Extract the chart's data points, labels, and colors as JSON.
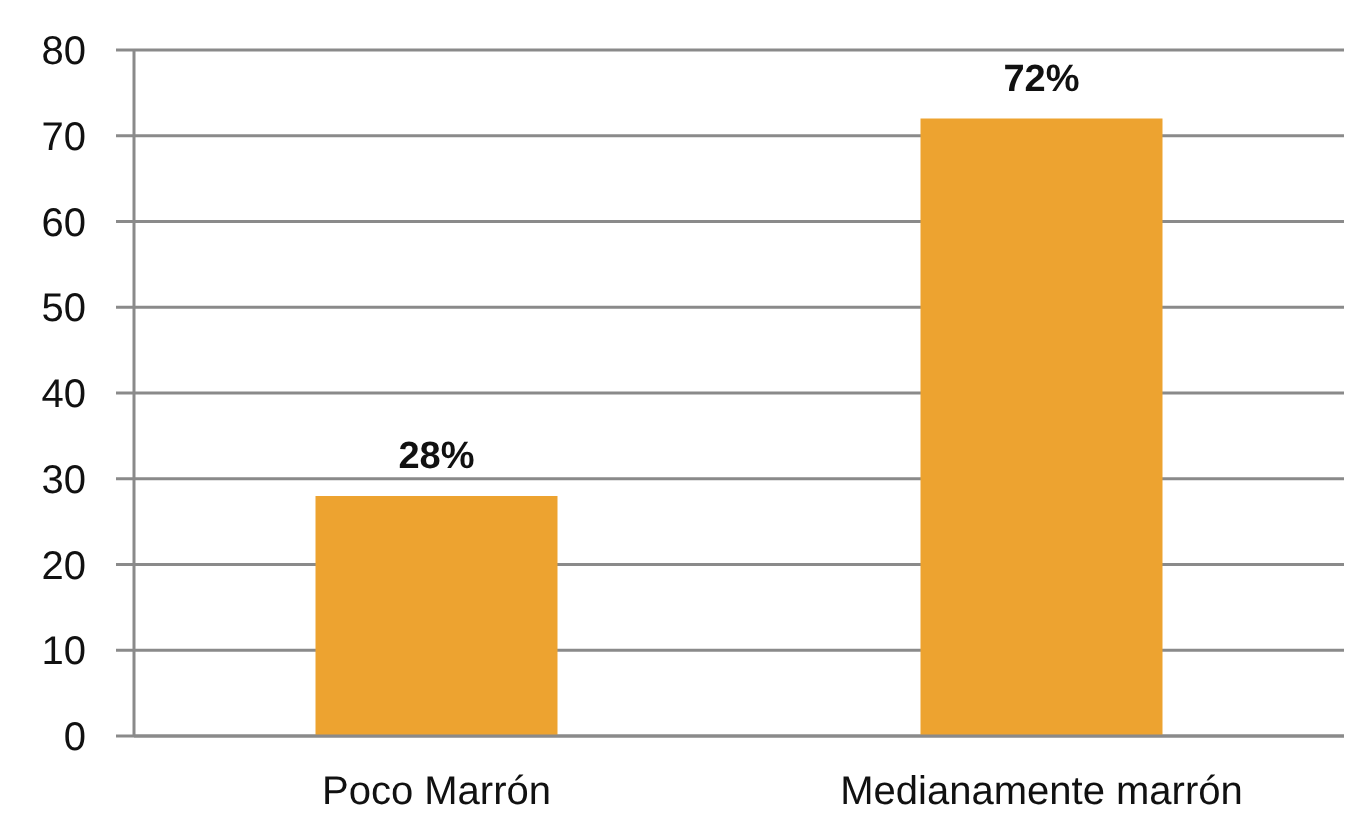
{
  "chart_data": {
    "type": "bar",
    "categories": [
      "Poco Marrón",
      "Medianamente marrón"
    ],
    "values": [
      28,
      72
    ],
    "color": "#eda330",
    "value_labels": [
      "28%",
      "72%"
    ],
    "ylim": [
      0,
      80
    ],
    "yticks": [
      0,
      10,
      20,
      30,
      40,
      50,
      60,
      70,
      80
    ],
    "grid": "y"
  }
}
